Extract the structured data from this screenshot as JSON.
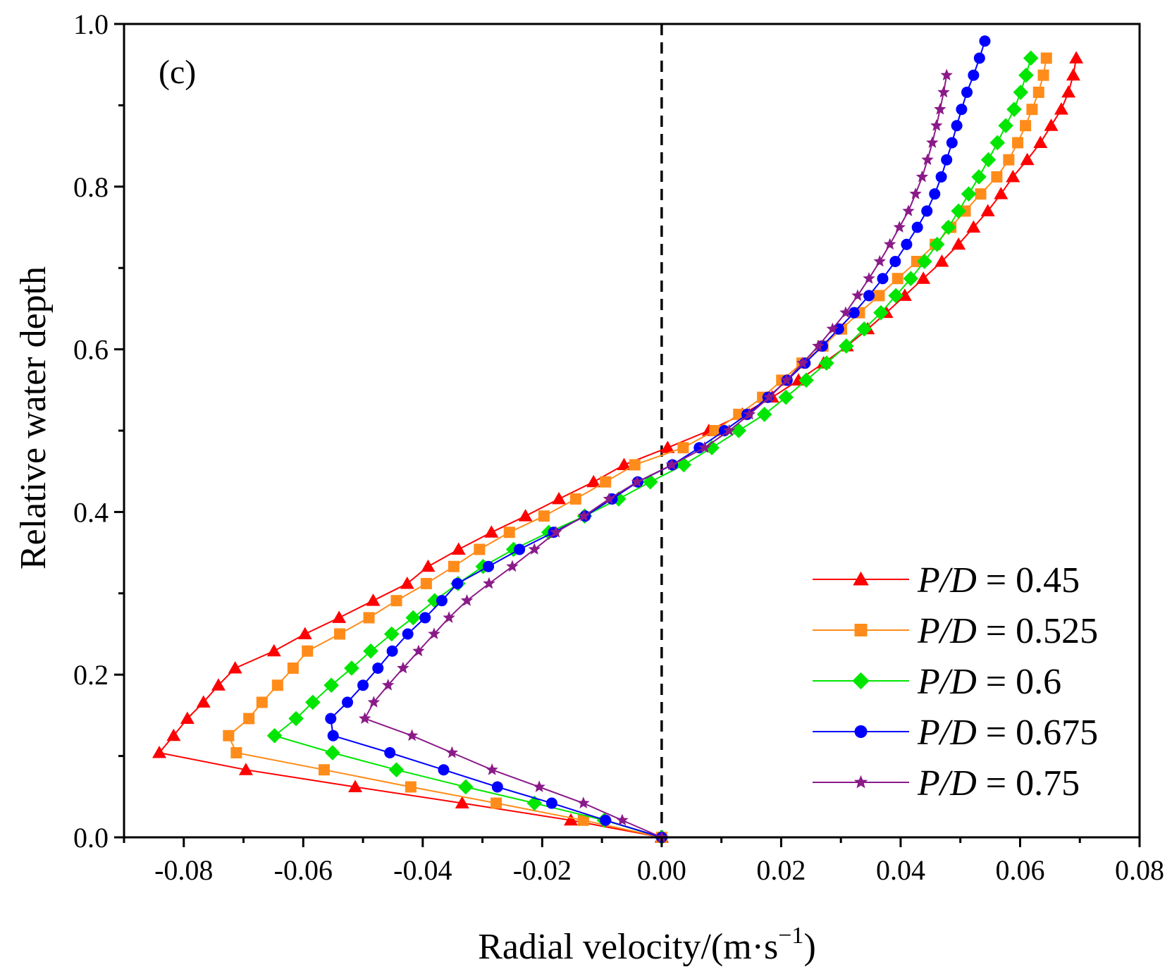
{
  "chart_data": {
    "type": "line",
    "panel_label": "(c)",
    "xlabel": "Radial velocity/(m·s",
    "xlabel_sup": "−1",
    "xlabel_close": ")",
    "ylabel": "Relative water depth",
    "xlim": [
      -0.09,
      0.08
    ],
    "ylim": [
      0.0,
      1.0
    ],
    "xticks": [
      -0.08,
      -0.06,
      -0.04,
      -0.02,
      0.0,
      0.02,
      0.04,
      0.06,
      0.08
    ],
    "xtick_labels": [
      "-0.08",
      "-0.06",
      "-0.04",
      "-0.02",
      "0.00",
      "0.02",
      "0.04",
      "0.06",
      "0.08"
    ],
    "yticks": [
      0.0,
      0.2,
      0.4,
      0.6,
      0.8,
      1.0
    ],
    "ytick_labels": [
      "0.0",
      "0.2",
      "0.4",
      "0.6",
      "0.8",
      "1.0"
    ],
    "reference_line": {
      "x": 0.0,
      "style": "dashed"
    },
    "legend_position": "bottom-right",
    "series": [
      {
        "name": "P/D = 0.45",
        "legend_italic": "P/D",
        "legend_value": " = 0.45",
        "color": "#ff0000",
        "marker": "triangle",
        "x": [
          0.0,
          -0.0152,
          -0.0334,
          -0.0513,
          -0.0696,
          -0.0841,
          -0.0817,
          -0.0794,
          -0.0767,
          -0.0742,
          -0.0714,
          -0.0649,
          -0.0597,
          -0.054,
          -0.0483,
          -0.0426,
          -0.0391,
          -0.034,
          -0.0285,
          -0.0228,
          -0.0172,
          -0.0114,
          -0.0063,
          0.001,
          0.0079,
          0.0135,
          0.0185,
          0.0229,
          0.0271,
          0.031,
          0.0345,
          0.0376,
          0.0407,
          0.0438,
          0.0469,
          0.0497,
          0.0522,
          0.0546,
          0.0568,
          0.0588,
          0.0612,
          0.0634,
          0.0652,
          0.0669,
          0.0681,
          0.0689,
          0.0694
        ],
        "y": [
          0.0,
          0.021,
          0.042,
          0.062,
          0.083,
          0.104,
          0.125,
          0.146,
          0.166,
          0.187,
          0.208,
          0.229,
          0.25,
          0.27,
          0.291,
          0.312,
          0.333,
          0.354,
          0.375,
          0.395,
          0.416,
          0.437,
          0.458,
          0.479,
          0.5,
          0.52,
          0.541,
          0.562,
          0.583,
          0.604,
          0.625,
          0.645,
          0.666,
          0.687,
          0.708,
          0.729,
          0.75,
          0.77,
          0.791,
          0.812,
          0.833,
          0.854,
          0.875,
          0.895,
          0.916,
          0.937,
          0.958
        ]
      },
      {
        "name": "P/D = 0.525",
        "legend_italic": "P/D",
        "legend_value": " = 0.525",
        "color": "#ff8c1a",
        "marker": "square",
        "x": [
          0.0,
          -0.0131,
          -0.0277,
          -0.042,
          -0.0565,
          -0.0712,
          -0.0725,
          -0.0691,
          -0.0669,
          -0.0643,
          -0.0617,
          -0.0593,
          -0.0539,
          -0.049,
          -0.0444,
          -0.0394,
          -0.0348,
          -0.0305,
          -0.0255,
          -0.0197,
          -0.0144,
          -0.0094,
          -0.0045,
          0.0036,
          0.0089,
          0.0129,
          0.0169,
          0.0201,
          0.0235,
          0.027,
          0.0301,
          0.0331,
          0.0364,
          0.0395,
          0.0427,
          0.0458,
          0.0484,
          0.0508,
          0.0534,
          0.0561,
          0.0581,
          0.0596,
          0.0609,
          0.062,
          0.0631,
          0.0639,
          0.0644
        ],
        "y": [
          0.0,
          0.021,
          0.042,
          0.062,
          0.083,
          0.104,
          0.125,
          0.146,
          0.166,
          0.187,
          0.208,
          0.229,
          0.25,
          0.27,
          0.291,
          0.312,
          0.333,
          0.354,
          0.375,
          0.395,
          0.416,
          0.437,
          0.458,
          0.479,
          0.5,
          0.52,
          0.541,
          0.562,
          0.583,
          0.604,
          0.625,
          0.645,
          0.666,
          0.687,
          0.708,
          0.729,
          0.75,
          0.77,
          0.791,
          0.812,
          0.833,
          0.854,
          0.875,
          0.895,
          0.916,
          0.937,
          0.958
        ]
      },
      {
        "name": "P/D = 0.6",
        "legend_italic": "P/D",
        "legend_value": " = 0.6",
        "color": "#00e600",
        "marker": "diamond",
        "x": [
          0.0,
          -0.0096,
          -0.0213,
          -0.0328,
          -0.0444,
          -0.0551,
          -0.0648,
          -0.0612,
          -0.0584,
          -0.0553,
          -0.0519,
          -0.0487,
          -0.0452,
          -0.0416,
          -0.038,
          -0.0341,
          -0.0299,
          -0.0248,
          -0.0189,
          -0.0129,
          -0.0072,
          -0.0019,
          0.0037,
          0.0084,
          0.0129,
          0.0172,
          0.0208,
          0.0242,
          0.0276,
          0.0309,
          0.0339,
          0.0367,
          0.0392,
          0.0417,
          0.044,
          0.0461,
          0.048,
          0.0497,
          0.0514,
          0.0531,
          0.0547,
          0.0562,
          0.0576,
          0.059,
          0.0601,
          0.061,
          0.0618
        ],
        "y": [
          0.0,
          0.021,
          0.042,
          0.062,
          0.083,
          0.104,
          0.125,
          0.146,
          0.166,
          0.187,
          0.208,
          0.229,
          0.25,
          0.27,
          0.291,
          0.312,
          0.333,
          0.354,
          0.375,
          0.395,
          0.416,
          0.437,
          0.458,
          0.479,
          0.5,
          0.52,
          0.541,
          0.562,
          0.583,
          0.604,
          0.625,
          0.645,
          0.666,
          0.687,
          0.708,
          0.729,
          0.75,
          0.77,
          0.791,
          0.812,
          0.833,
          0.854,
          0.875,
          0.895,
          0.916,
          0.937,
          0.958
        ]
      },
      {
        "name": "P/D = 0.675",
        "legend_italic": "P/D",
        "legend_value": " = 0.675",
        "color": "#0000ff",
        "marker": "circle",
        "x": [
          0.0,
          -0.0094,
          -0.0184,
          -0.0275,
          -0.0365,
          -0.0455,
          -0.055,
          -0.0554,
          -0.0526,
          -0.05,
          -0.0475,
          -0.0451,
          -0.0425,
          -0.0396,
          -0.0368,
          -0.0342,
          -0.029,
          -0.0238,
          -0.0181,
          -0.0128,
          -0.0083,
          -0.004,
          0.0018,
          0.0063,
          0.0105,
          0.0143,
          0.0178,
          0.021,
          0.024,
          0.0269,
          0.0296,
          0.0322,
          0.0347,
          0.037,
          0.0391,
          0.041,
          0.0428,
          0.0444,
          0.0457,
          0.0468,
          0.0477,
          0.0486,
          0.0494,
          0.0502,
          0.0511,
          0.0522,
          0.0532,
          0.0541
        ],
        "y": [
          0.0,
          0.021,
          0.042,
          0.062,
          0.083,
          0.104,
          0.125,
          0.146,
          0.166,
          0.187,
          0.208,
          0.229,
          0.25,
          0.27,
          0.291,
          0.312,
          0.333,
          0.354,
          0.375,
          0.395,
          0.416,
          0.437,
          0.458,
          0.479,
          0.5,
          0.52,
          0.541,
          0.562,
          0.583,
          0.604,
          0.625,
          0.645,
          0.666,
          0.687,
          0.708,
          0.729,
          0.75,
          0.77,
          0.791,
          0.812,
          0.833,
          0.854,
          0.875,
          0.895,
          0.916,
          0.937,
          0.958,
          0.979
        ]
      },
      {
        "name": "P/D = 0.75",
        "legend_italic": "P/D",
        "legend_value": " = 0.75",
        "color": "#8b1a89",
        "marker": "star",
        "x": [
          0.0,
          -0.0066,
          -0.0131,
          -0.0205,
          -0.0284,
          -0.0351,
          -0.0418,
          -0.0497,
          -0.0482,
          -0.0458,
          -0.0433,
          -0.0407,
          -0.0381,
          -0.0356,
          -0.0326,
          -0.0289,
          -0.025,
          -0.0213,
          -0.0177,
          -0.013,
          -0.0088,
          -0.0041,
          0.0017,
          0.0072,
          0.0113,
          0.0147,
          0.018,
          0.0209,
          0.0236,
          0.0262,
          0.0286,
          0.0308,
          0.0328,
          0.0347,
          0.0365,
          0.0382,
          0.0398,
          0.0413,
          0.0425,
          0.0436,
          0.0445,
          0.0453,
          0.046,
          0.0466,
          0.0472,
          0.0477
        ],
        "y": [
          0.0,
          0.021,
          0.042,
          0.062,
          0.083,
          0.104,
          0.125,
          0.146,
          0.166,
          0.187,
          0.208,
          0.229,
          0.25,
          0.27,
          0.291,
          0.312,
          0.333,
          0.354,
          0.375,
          0.395,
          0.416,
          0.437,
          0.458,
          0.479,
          0.5,
          0.52,
          0.541,
          0.562,
          0.583,
          0.604,
          0.625,
          0.645,
          0.666,
          0.687,
          0.708,
          0.729,
          0.75,
          0.77,
          0.791,
          0.812,
          0.833,
          0.854,
          0.875,
          0.895,
          0.916,
          0.937
        ]
      }
    ]
  }
}
